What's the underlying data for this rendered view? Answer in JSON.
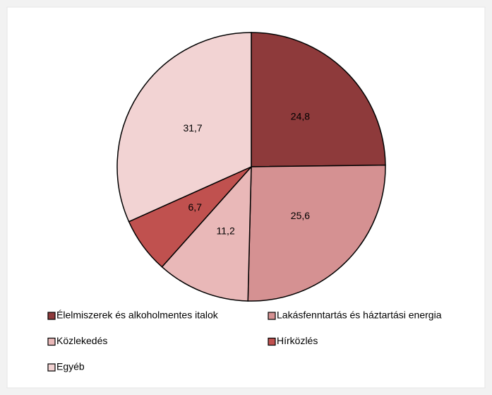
{
  "chart_data": {
    "type": "pie",
    "categories": [
      "Élelmiszerek és alkoholmentes italok",
      "Lakásfenntartás és háztartási energia",
      "Közlekedés",
      "Hírközlés",
      "Egyéb"
    ],
    "values": [
      24.8,
      25.6,
      11.2,
      6.7,
      31.7
    ],
    "value_labels": [
      "24,8",
      "25,6",
      "11,2",
      "6,7",
      "31,7"
    ],
    "colors": [
      "#8e3a3b",
      "#d59192",
      "#e9b8b8",
      "#c0514f",
      "#f2d3d3"
    ]
  }
}
